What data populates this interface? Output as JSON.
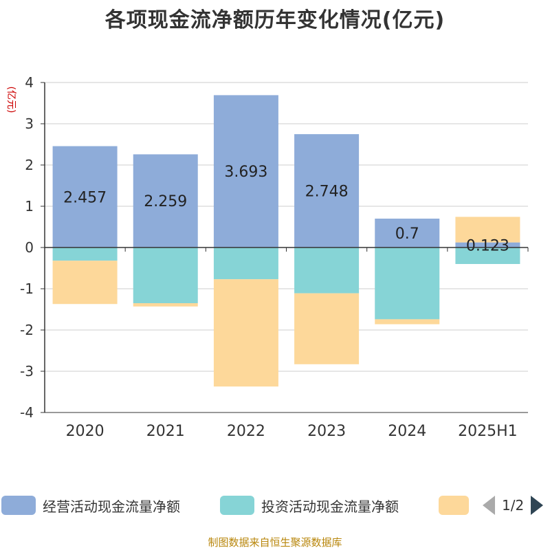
{
  "title": "各项现金流净额历年变化情况(亿元)",
  "source": "制图数据来自恒生聚源数据库",
  "legend_pager": "1/2",
  "colors": {
    "operating": "#8eacd9",
    "investing": "#86d4d6",
    "financing": "#fdd89a",
    "axis": "#333333",
    "grid": "#cccccc",
    "unit_label": "#cc0000"
  },
  "chart_data": {
    "type": "bar",
    "stacked": true,
    "ylabel": "(亿元)",
    "ylim": [
      -4,
      4
    ],
    "yticks": [
      4,
      3,
      2,
      1,
      0,
      -1,
      -2,
      -3,
      -4
    ],
    "grid": true,
    "legend_position": "bottom",
    "categories": [
      "2020",
      "2021",
      "2022",
      "2023",
      "2024",
      "2025H1"
    ],
    "series": [
      {
        "name": "经营活动现金流量净额",
        "values": [
          2.457,
          2.259,
          3.693,
          2.748,
          0.7,
          0.123
        ],
        "labels": [
          "2.457",
          "2.259",
          "3.693",
          "2.748",
          "0.7",
          "0.123"
        ]
      },
      {
        "name": "投资活动现金流量净额",
        "values": [
          -0.32,
          -1.35,
          -0.77,
          -1.11,
          -1.74,
          -0.4
        ]
      },
      {
        "name": "",
        "values": [
          -1.05,
          -0.08,
          -2.6,
          -1.72,
          -0.12,
          0.62
        ]
      }
    ]
  }
}
